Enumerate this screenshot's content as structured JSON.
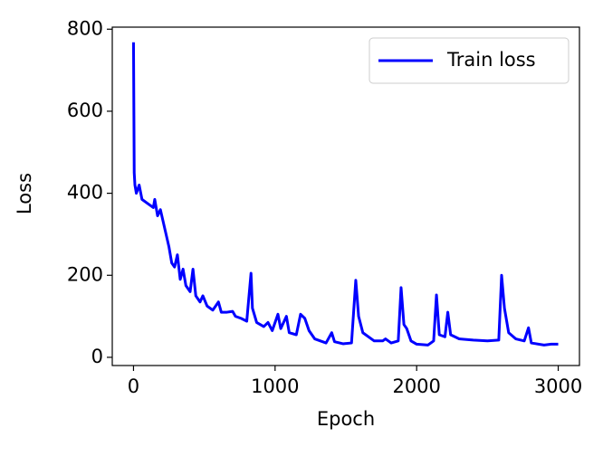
{
  "chart_data": {
    "type": "line",
    "xlabel": "Epoch",
    "ylabel": "Loss",
    "x": [
      0,
      5,
      10,
      20,
      40,
      60,
      100,
      140,
      150,
      170,
      190,
      210,
      230,
      250,
      270,
      290,
      310,
      330,
      350,
      370,
      400,
      420,
      440,
      470,
      490,
      520,
      560,
      600,
      620,
      660,
      700,
      720,
      760,
      800,
      830,
      840,
      870,
      920,
      950,
      980,
      1020,
      1040,
      1080,
      1100,
      1150,
      1180,
      1210,
      1240,
      1280,
      1320,
      1360,
      1400,
      1420,
      1480,
      1540,
      1570,
      1590,
      1620,
      1700,
      1760,
      1780,
      1820,
      1870,
      1890,
      1910,
      1930,
      1960,
      2000,
      2080,
      2120,
      2140,
      2160,
      2200,
      2220,
      2240,
      2300,
      2400,
      2500,
      2580,
      2600,
      2620,
      2650,
      2700,
      2760,
      2790,
      2810,
      2900,
      2950,
      3000
    ],
    "series": [
      {
        "name": "Train loss",
        "color": "#0000ff",
        "values": [
          768,
          450,
          420,
          400,
          420,
          385,
          375,
          365,
          385,
          345,
          360,
          330,
          300,
          270,
          230,
          220,
          250,
          190,
          215,
          175,
          160,
          215,
          150,
          135,
          150,
          125,
          115,
          135,
          110,
          110,
          112,
          100,
          95,
          88,
          205,
          120,
          85,
          75,
          85,
          65,
          105,
          70,
          100,
          60,
          55,
          105,
          95,
          65,
          45,
          40,
          35,
          60,
          38,
          33,
          35,
          188,
          100,
          60,
          40,
          40,
          45,
          35,
          40,
          170,
          80,
          70,
          40,
          32,
          30,
          40,
          152,
          55,
          50,
          110,
          55,
          45,
          42,
          40,
          42,
          200,
          120,
          60,
          45,
          40,
          72,
          35,
          30,
          32,
          32
        ]
      }
    ],
    "xlim": [
      -150,
      3150
    ],
    "xticks": [
      0,
      1000,
      2000,
      3000
    ],
    "ylim": [
      -20,
      805
    ],
    "yticks": [
      0,
      200,
      400,
      600,
      800
    ],
    "grid": false,
    "legend": "upper right"
  }
}
